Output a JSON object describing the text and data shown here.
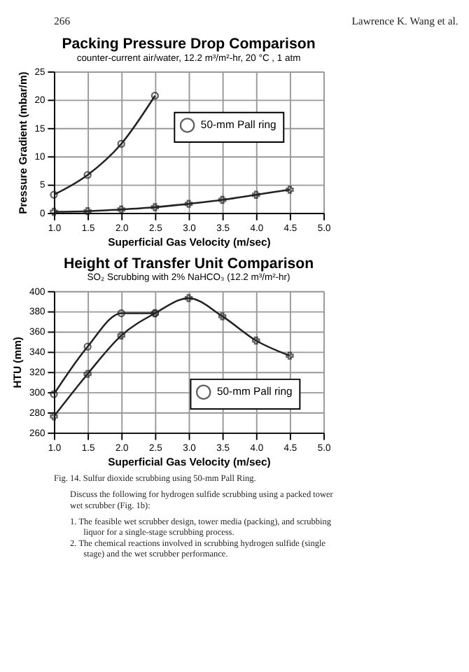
{
  "chart_data": [
    {
      "type": "line",
      "title": "Packing Pressure Drop Comparison",
      "subtitle": "counter-current air/water, 12.2 m³/m²-hr,  20 °C ,  1 atm",
      "xlabel": "Superficial Gas Velocity (m/sec)",
      "ylabel": "Pressure Gradient (mbar/m)",
      "annotations": [
        "266",
        "Lawrence K. Wang et al."
      ],
      "xlim": [
        1.0,
        5.0
      ],
      "xticks": [
        {
          "value": 1,
          "label": "1.0"
        },
        {
          "value": 1.5,
          "label": "1.5"
        },
        {
          "value": 2,
          "label": "2.0"
        },
        {
          "value": 2.5,
          "label": "2.5"
        },
        {
          "value": 3,
          "label": "3.0"
        },
        {
          "value": 3.5,
          "label": "3.5"
        },
        {
          "value": 4,
          "label": "4.0"
        },
        {
          "value": 4.5,
          "label": "4.5"
        },
        {
          "value": 5,
          "label": "5.0"
        }
      ],
      "ylim": [
        0,
        25
      ],
      "yticks": [
        0,
        5,
        10,
        15,
        20,
        25
      ],
      "grid": true,
      "legend": "right",
      "series": [
        {
          "name": "50-mm Pall ring",
          "color": "#222222",
          "marker": "circle",
          "x": [
            1.0,
            1.5,
            2.0,
            2.5
          ],
          "values": [
            3.2,
            6.7,
            12.2,
            20.7
          ]
        },
        {
          "color": "#222222",
          "marker": "cross",
          "x": [
            1.0,
            1.5,
            2.0,
            2.5,
            3.0,
            3.5,
            4.0,
            4.5
          ],
          "values": [
            0.2,
            0.3,
            0.6,
            1.0,
            1.6,
            2.3,
            3.2,
            4.1
          ]
        }
      ]
    },
    {
      "type": "line",
      "title": "Height of Transfer Unit Comparison",
      "subtitle": "SO₂ Scrubbing with 2% NaHCO₃ (12.2 m³/m²-hr)",
      "xlabel": "Superficial Gas Velocity (m/sec)",
      "ylabel": "HTU (mm)",
      "annotations": [
        "Fig. 14. Sulfur dioxide scrubbing using 50-mm Pall Ring.",
        "Discuss the following for hydrogen sulfide scrubbing using a packed tower wet scrubber (Fig. 1b):",
        "1.  The feasible wet scrubber design, tower media (packing), and scrubbing liquor for a single-stage scrubbing process.",
        "2.  The chemical reactions involved in scrubbing hydrogen sulfide (single stage) and the wet scrubber performance."
      ],
      "xlim": [
        1.0,
        5.0
      ],
      "xticks": [
        {
          "value": 1,
          "label": "1.0"
        },
        {
          "value": 1.5,
          "label": "1.5"
        },
        {
          "value": 2,
          "label": "2.0"
        },
        {
          "value": 2.5,
          "label": "2.5"
        },
        {
          "value": 3,
          "label": "3.0"
        },
        {
          "value": 3.5,
          "label": "3.5"
        },
        {
          "value": 4,
          "label": "4.0"
        },
        {
          "value": 4.5,
          "label": "4.5"
        },
        {
          "value": 5,
          "label": "5.0"
        }
      ],
      "ylim": [
        260,
        400
      ],
      "yticks": [
        260,
        280,
        300,
        320,
        340,
        360,
        380,
        400
      ],
      "grid": true,
      "legend": "bottom right",
      "series": [
        {
          "name": "50-mm Pall ring",
          "color": "#222222",
          "marker": "circle",
          "x": [
            1.0,
            1.5,
            2.0,
            2.5
          ],
          "values": [
            298,
            345,
            378,
            378
          ]
        },
        {
          "color": "#222222",
          "marker": "cross",
          "x": [
            1.0,
            1.5,
            2.0,
            2.5,
            3.0,
            3.5,
            4.0,
            4.5
          ],
          "values": [
            276,
            318,
            356,
            378,
            393,
            375,
            351,
            336
          ]
        }
      ]
    }
  ]
}
